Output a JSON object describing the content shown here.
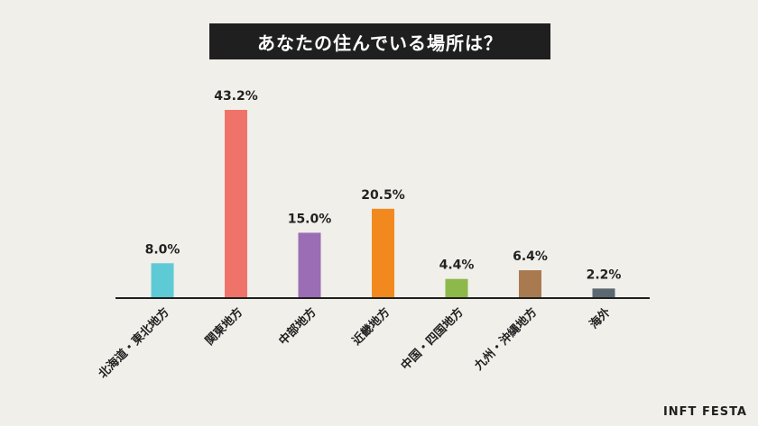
{
  "brand": "INFT FESTA",
  "chart_data": {
    "type": "bar",
    "title": "あなたの住んでいる場所は？",
    "categories": [
      "北海道・東北地方",
      "関東地方",
      "中部地方",
      "近畿地方",
      "中国・四国地方",
      "九州・沖縄地方",
      "海外"
    ],
    "values": [
      8.0,
      43.2,
      15.0,
      20.5,
      4.4,
      6.4,
      2.2
    ],
    "value_labels": [
      "8.0%",
      "43.2%",
      "15.0%",
      "20.5%",
      "4.4%",
      "6.4%",
      "2.2%"
    ],
    "colors": [
      "#5ecad6",
      "#f07369",
      "#9b6db5",
      "#f2891f",
      "#8db84a",
      "#a97a50",
      "#5a6872"
    ],
    "ylim": [
      0,
      50
    ],
    "grid": false,
    "legend": "none"
  }
}
